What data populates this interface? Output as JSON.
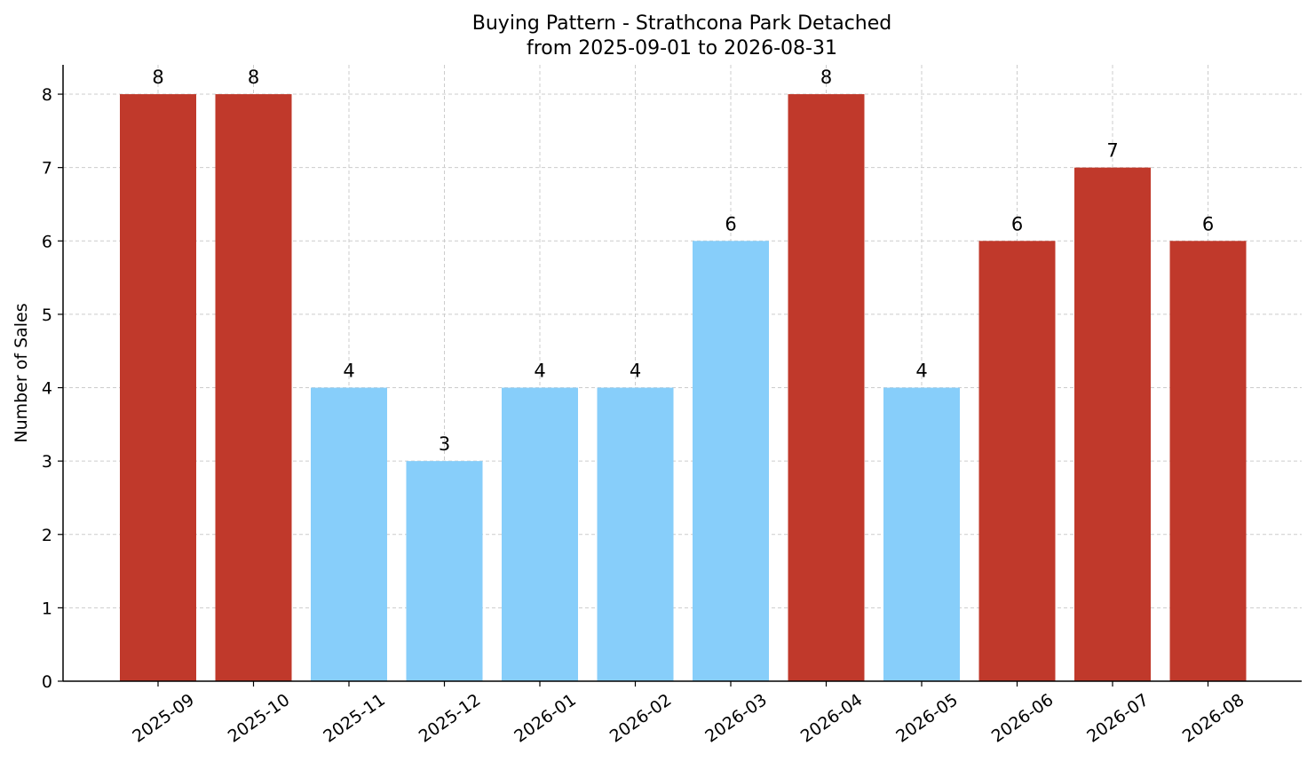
{
  "chart_data": {
    "type": "bar",
    "title": "Buying Pattern - Strathcona Park Detached",
    "subtitle": "from 2025-09-01 to 2026-08-31",
    "xlabel": "",
    "ylabel": "Number of Sales",
    "categories": [
      "2025-09",
      "2025-10",
      "2025-11",
      "2025-12",
      "2026-01",
      "2026-02",
      "2026-03",
      "2026-04",
      "2026-05",
      "2026-06",
      "2026-07",
      "2026-08"
    ],
    "values": [
      8,
      8,
      4,
      3,
      4,
      4,
      6,
      8,
      4,
      6,
      7,
      6
    ],
    "bar_colors": [
      "#c0392b",
      "#c0392b",
      "#87cefa",
      "#87cefa",
      "#87cefa",
      "#87cefa",
      "#87cefa",
      "#c0392b",
      "#87cefa",
      "#c0392b",
      "#c0392b",
      "#c0392b"
    ],
    "ylim": [
      0,
      8.4
    ],
    "yticks": [
      0,
      1,
      2,
      3,
      4,
      5,
      6,
      7,
      8
    ],
    "grid": true,
    "data_labels": true,
    "legend": "none"
  }
}
